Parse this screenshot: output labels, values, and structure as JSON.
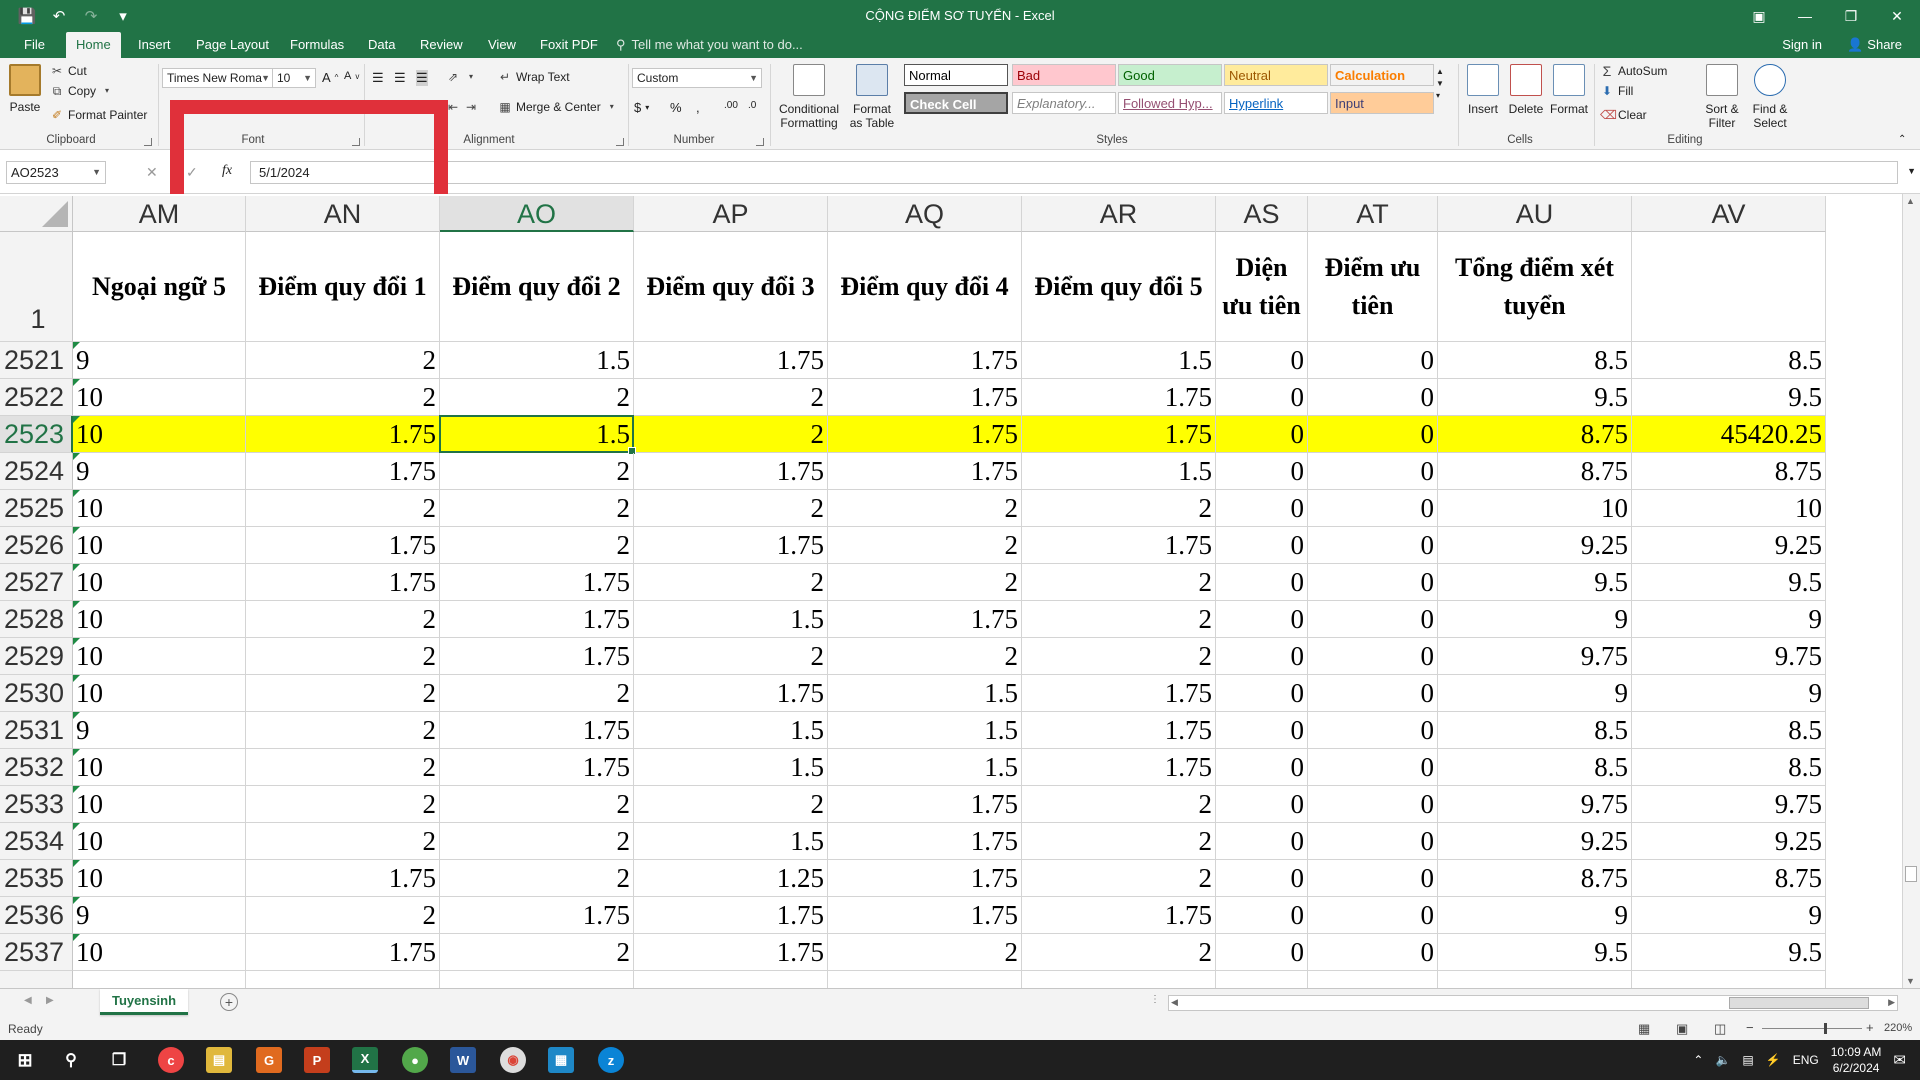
{
  "window": {
    "title": "CỘNG ĐIỂM SƠ TUYỂN - Excel",
    "accent": "#217346"
  },
  "menu": {
    "tabs": [
      "File",
      "Home",
      "Insert",
      "Page Layout",
      "Formulas",
      "Data",
      "Review",
      "View",
      "Foxit PDF"
    ],
    "active": "Home",
    "tell_me": "Tell me what you want to do...",
    "sign_in": "Sign in",
    "share": "Share"
  },
  "ribbon": {
    "clipboard": {
      "label": "Clipboard",
      "paste": "Paste",
      "cut": "Cut",
      "copy": "Copy",
      "format_painter": "Format Painter"
    },
    "font": {
      "label": "Font",
      "name": "Times New Roma",
      "size": "10"
    },
    "alignment": {
      "label": "Alignment",
      "wrap": "Wrap Text",
      "merge": "Merge & Center"
    },
    "number": {
      "label": "Number",
      "format": "Custom"
    },
    "styles": {
      "label": "Styles",
      "conditional": "Conditional Formatting",
      "format_table": "Format as Table",
      "boxes": [
        {
          "text": "Normal",
          "bg": "#ffffff",
          "fg": "#000000"
        },
        {
          "text": "Bad",
          "bg": "#ffc7ce",
          "fg": "#9c0006"
        },
        {
          "text": "Good",
          "bg": "#c6efce",
          "fg": "#006100"
        },
        {
          "text": "Neutral",
          "bg": "#ffeb9c",
          "fg": "#9c5700"
        },
        {
          "text": "Calculation",
          "bg": "#f2f2f2",
          "fg": "#fa7d00"
        },
        {
          "text": "Check Cell",
          "bg": "#a5a5a5",
          "fg": "#ffffff"
        },
        {
          "text": "Explanatory...",
          "bg": "#ffffff",
          "fg": "#7f7f7f"
        },
        {
          "text": "Followed Hyp...",
          "bg": "#ffffff",
          "fg": "#954f72"
        },
        {
          "text": "Hyperlink",
          "bg": "#ffffff",
          "fg": "#0563c1"
        },
        {
          "text": "Input",
          "bg": "#ffcc99",
          "fg": "#3f3f76"
        }
      ]
    },
    "cells": {
      "label": "Cells",
      "insert": "Insert",
      "delete": "Delete",
      "format": "Format"
    },
    "editing": {
      "label": "Editing",
      "autosum": "AutoSum",
      "fill": "Fill",
      "clear": "Clear",
      "sort": "Sort & Filter",
      "find": "Find & Select"
    }
  },
  "formula_bar": {
    "name_box": "AO2523",
    "fx": "fx",
    "value": "5/1/2024"
  },
  "grid": {
    "columns": [
      "AM",
      "AN",
      "AO",
      "AP",
      "AQ",
      "AR",
      "AS",
      "AT",
      "AU",
      "AV"
    ],
    "selected_column": "AO",
    "header_row_number": "1",
    "headers": [
      "Ngoại ngữ 5",
      "Điểm quy đổi 1",
      "Điểm quy đổi 2",
      "Điểm quy đổi 3",
      "Điểm quy đổi 4",
      "Điểm quy đổi 5",
      "Diện ưu tiên",
      "Điểm ưu tiên",
      "Tổng điểm xét tuyển",
      ""
    ],
    "selected_row": "2523",
    "highlight_color": "#ffff00",
    "rows": [
      {
        "n": "2521",
        "v": [
          "9",
          "2",
          "1.5",
          "1.75",
          "1.75",
          "1.5",
          "0",
          "0",
          "8.5",
          "8.5"
        ]
      },
      {
        "n": "2522",
        "v": [
          "10",
          "2",
          "2",
          "2",
          "1.75",
          "1.75",
          "0",
          "0",
          "9.5",
          "9.5"
        ]
      },
      {
        "n": "2523",
        "v": [
          "10",
          "1.75",
          "1.5",
          "2",
          "1.75",
          "1.75",
          "0",
          "0",
          "8.75",
          "45420.25"
        ]
      },
      {
        "n": "2524",
        "v": [
          "9",
          "1.75",
          "2",
          "1.75",
          "1.75",
          "1.5",
          "0",
          "0",
          "8.75",
          "8.75"
        ]
      },
      {
        "n": "2525",
        "v": [
          "10",
          "2",
          "2",
          "2",
          "2",
          "2",
          "0",
          "0",
          "10",
          "10"
        ]
      },
      {
        "n": "2526",
        "v": [
          "10",
          "1.75",
          "2",
          "1.75",
          "2",
          "1.75",
          "0",
          "0",
          "9.25",
          "9.25"
        ]
      },
      {
        "n": "2527",
        "v": [
          "10",
          "1.75",
          "1.75",
          "2",
          "2",
          "2",
          "0",
          "0",
          "9.5",
          "9.5"
        ]
      },
      {
        "n": "2528",
        "v": [
          "10",
          "2",
          "1.75",
          "1.5",
          "1.75",
          "2",
          "0",
          "0",
          "9",
          "9"
        ]
      },
      {
        "n": "2529",
        "v": [
          "10",
          "2",
          "1.75",
          "2",
          "2",
          "2",
          "0",
          "0",
          "9.75",
          "9.75"
        ]
      },
      {
        "n": "2530",
        "v": [
          "10",
          "2",
          "2",
          "1.75",
          "1.5",
          "1.75",
          "0",
          "0",
          "9",
          "9"
        ]
      },
      {
        "n": "2531",
        "v": [
          "9",
          "2",
          "1.75",
          "1.5",
          "1.5",
          "1.75",
          "0",
          "0",
          "8.5",
          "8.5"
        ]
      },
      {
        "n": "2532",
        "v": [
          "10",
          "2",
          "1.75",
          "1.5",
          "1.5",
          "1.75",
          "0",
          "0",
          "8.5",
          "8.5"
        ]
      },
      {
        "n": "2533",
        "v": [
          "10",
          "2",
          "2",
          "2",
          "1.75",
          "2",
          "0",
          "0",
          "9.75",
          "9.75"
        ]
      },
      {
        "n": "2534",
        "v": [
          "10",
          "2",
          "2",
          "1.5",
          "1.75",
          "2",
          "0",
          "0",
          "9.25",
          "9.25"
        ]
      },
      {
        "n": "2535",
        "v": [
          "10",
          "1.75",
          "2",
          "1.25",
          "1.75",
          "2",
          "0",
          "0",
          "8.75",
          "8.75"
        ]
      },
      {
        "n": "2536",
        "v": [
          "9",
          "2",
          "1.75",
          "1.75",
          "1.75",
          "1.75",
          "0",
          "0",
          "9",
          "9"
        ]
      },
      {
        "n": "2537",
        "v": [
          "10",
          "1.75",
          "2",
          "1.75",
          "2",
          "2",
          "0",
          "0",
          "9.5",
          "9.5"
        ]
      }
    ]
  },
  "sheets": {
    "active": "Tuyensinh"
  },
  "status": {
    "ready": "Ready",
    "zoom": "220%"
  },
  "taskbar": {
    "lang": "ENG",
    "time": "10:09 AM",
    "date": "6/2/2024"
  }
}
